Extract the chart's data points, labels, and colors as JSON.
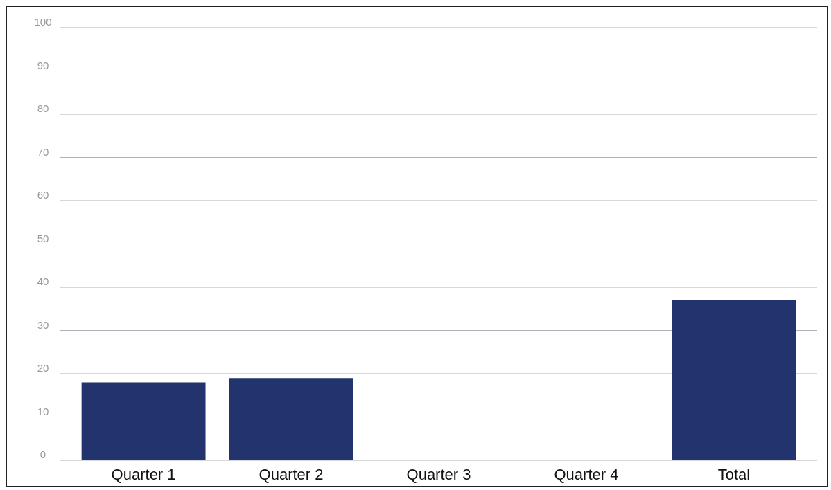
{
  "chart_data": {
    "type": "bar",
    "categories": [
      "Quarter 1",
      "Quarter 2",
      "Quarter 3",
      "Quarter 4",
      "Total"
    ],
    "values": [
      18,
      19,
      null,
      null,
      37
    ],
    "color": "#22336d",
    "ylim": [
      0,
      100
    ],
    "yticks": [
      0,
      10,
      20,
      30,
      40,
      50,
      60,
      70,
      80,
      90,
      100
    ],
    "grid": "y"
  }
}
